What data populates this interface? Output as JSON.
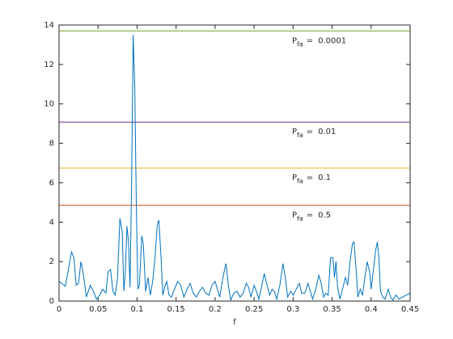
{
  "chart_data": {
    "type": "line",
    "x_label": "f",
    "xlim": [
      0,
      0.45
    ],
    "xticks": [
      0,
      0.05,
      0.1,
      0.15,
      0.2,
      0.25,
      0.3,
      0.35,
      0.4,
      0.45
    ],
    "ylim": [
      0,
      14
    ],
    "yticks": [
      0,
      2,
      4,
      6,
      8,
      10,
      12,
      14
    ],
    "color": "#0072bd",
    "x": [
      0,
      0.005,
      0.008,
      0.012,
      0.016,
      0.019,
      0.022,
      0.025,
      0.028,
      0.031,
      0.035,
      0.04,
      0.044,
      0.048,
      0.052,
      0.056,
      0.06,
      0.063,
      0.066,
      0.069,
      0.072,
      0.075,
      0.078,
      0.081,
      0.083,
      0.085,
      0.087,
      0.089,
      0.091,
      0.093,
      0.095,
      0.097,
      0.099,
      0.101,
      0.103,
      0.106,
      0.108,
      0.111,
      0.114,
      0.117,
      0.12,
      0.123,
      0.126,
      0.128,
      0.131,
      0.133,
      0.136,
      0.138,
      0.141,
      0.144,
      0.148,
      0.152,
      0.156,
      0.16,
      0.164,
      0.168,
      0.172,
      0.176,
      0.18,
      0.184,
      0.188,
      0.192,
      0.196,
      0.2,
      0.203,
      0.206,
      0.21,
      0.214,
      0.217,
      0.22,
      0.224,
      0.228,
      0.232,
      0.236,
      0.24,
      0.243,
      0.246,
      0.25,
      0.253,
      0.256,
      0.259,
      0.263,
      0.266,
      0.27,
      0.273,
      0.276,
      0.279,
      0.283,
      0.287,
      0.29,
      0.293,
      0.297,
      0.3,
      0.304,
      0.308,
      0.311,
      0.315,
      0.319,
      0.322,
      0.325,
      0.329,
      0.333,
      0.336,
      0.339,
      0.342,
      0.345,
      0.348,
      0.351,
      0.353,
      0.355,
      0.357,
      0.36,
      0.364,
      0.367,
      0.37,
      0.373,
      0.376,
      0.378,
      0.381,
      0.383,
      0.386,
      0.389,
      0.392,
      0.395,
      0.398,
      0.4,
      0.403,
      0.406,
      0.408,
      0.41,
      0.412,
      0.415,
      0.418,
      0.422,
      0.425,
      0.428,
      0.432,
      0.436,
      0.44,
      0.445,
      0.45
    ],
    "values": [
      1.0,
      0.85,
      0.75,
      1.6,
      2.5,
      2.2,
      0.8,
      0.9,
      2.0,
      1.4,
      0.2,
      0.8,
      0.5,
      0.1,
      0.3,
      0.6,
      0.4,
      1.5,
      1.6,
      0.5,
      0.3,
      1.2,
      4.2,
      3.5,
      0.5,
      1.5,
      3.8,
      3.0,
      0.7,
      6.0,
      13.5,
      11.0,
      5.0,
      0.6,
      0.8,
      3.3,
      2.9,
      0.5,
      1.2,
      0.3,
      1.0,
      2.2,
      3.9,
      4.1,
      2.0,
      0.3,
      0.8,
      1.0,
      0.3,
      0.2,
      0.6,
      1.0,
      0.8,
      0.2,
      0.6,
      0.9,
      0.4,
      0.2,
      0.5,
      0.7,
      0.4,
      0.3,
      0.8,
      1.0,
      0.6,
      0.2,
      1.2,
      1.9,
      0.8,
      0.05,
      0.4,
      0.5,
      0.2,
      0.4,
      0.9,
      0.7,
      0.2,
      0.8,
      0.5,
      0.1,
      0.6,
      1.4,
      0.9,
      0.3,
      0.6,
      0.5,
      0.1,
      0.8,
      1.9,
      1.2,
      0.2,
      0.5,
      0.3,
      0.6,
      0.9,
      0.4,
      0.4,
      0.9,
      0.5,
      0.1,
      0.6,
      1.3,
      0.9,
      0.2,
      0.4,
      0.3,
      2.2,
      2.2,
      1.2,
      2.0,
      0.7,
      0.1,
      0.7,
      1.2,
      0.8,
      2.0,
      2.9,
      3.0,
      1.5,
      0.2,
      0.6,
      0.3,
      1.2,
      2.0,
      1.5,
      0.6,
      1.6,
      2.6,
      3.0,
      2.2,
      0.5,
      0.2,
      0.1,
      0.6,
      0.2,
      0.05,
      0.3,
      0.1,
      0.2,
      0.3,
      0.4
    ],
    "pfa_symbol": "P",
    "pfa_subscript": "fa",
    "pfa_relation": "=",
    "thresholds": [
      {
        "pfa": 0.0001,
        "level": 13.7,
        "color": "#77ac30"
      },
      {
        "pfa": 0.01,
        "level": 9.08,
        "color": "#7e2f8e"
      },
      {
        "pfa": 0.1,
        "level": 6.75,
        "color": "#edb120"
      },
      {
        "pfa": 0.5,
        "level": 4.86,
        "color": "#d95319"
      }
    ]
  }
}
